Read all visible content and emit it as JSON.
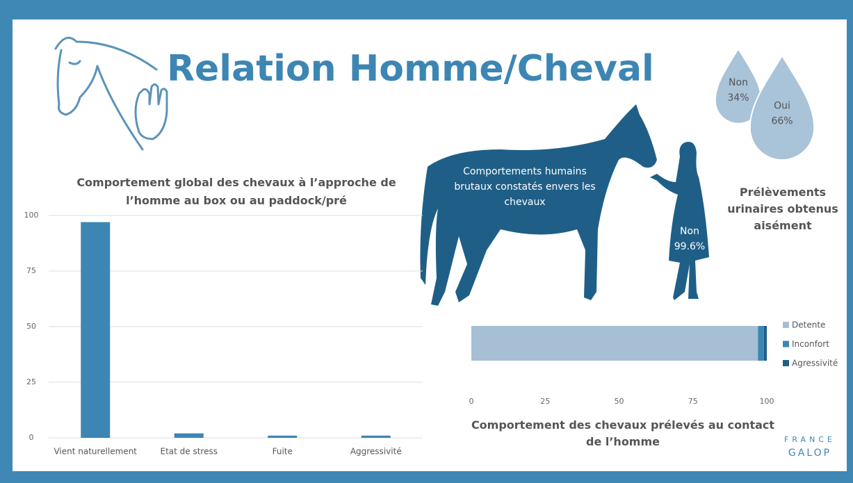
{
  "title": "Relation Homme/Cheval",
  "logo": [
    "FRANCE",
    "GALOP"
  ],
  "chart_data": [
    {
      "type": "bar",
      "title": "Comportement global des chevaux à l’approche de l’homme au box ou au paddock/pré",
      "categories": [
        "Vient naturellement",
        "Etat de stress",
        "Fuite",
        "Aggressivité"
      ],
      "values": [
        97,
        2,
        1,
        1
      ],
      "color": "#3d86b4",
      "ylim": [
        0,
        100
      ],
      "yticks": [
        0,
        25,
        50,
        75,
        100
      ],
      "grid": true
    },
    {
      "type": "stacked_hbar",
      "title": "Comportement des chevaux prélevés au contact de l’homme",
      "series": [
        {
          "name": "Detente",
          "color": "#a7bfd4",
          "values": [
            97
          ]
        },
        {
          "name": "Inconfort",
          "color": "#3d86b4",
          "values": [
            2
          ]
        },
        {
          "name": "Agressivité",
          "color": "#1f5f87",
          "values": [
            1
          ]
        }
      ],
      "xlim": [
        0,
        100
      ],
      "xticks": [
        0,
        25,
        50,
        75,
        100
      ],
      "legend": "right"
    },
    {
      "type": "drops",
      "title": "Prélèvements urinaires obtenus aisément",
      "categories": [
        "Non",
        "Oui"
      ],
      "values": [
        34,
        66
      ],
      "value_labels": [
        "34%",
        "66%"
      ],
      "color": "#a9c3d8"
    },
    {
      "type": "stat",
      "title": "Comportements humains brutaux constatés envers les chevaux",
      "categories": [
        "Non"
      ],
      "values": [
        99.6
      ],
      "value_labels": [
        "99.6%"
      ],
      "color": "#1f5f87"
    }
  ]
}
